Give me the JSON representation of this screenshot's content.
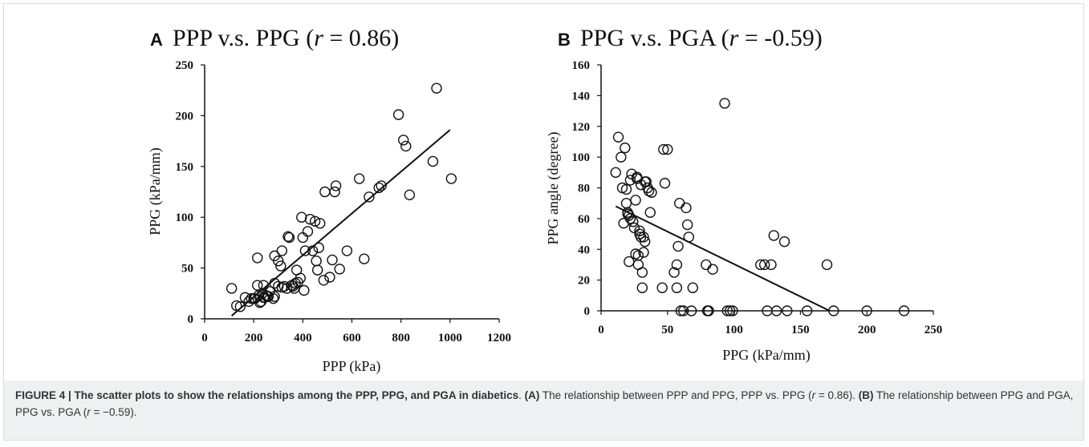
{
  "chart_data": [
    {
      "type": "scatter",
      "panel": "A",
      "title_main": "PPP v.s. PPG (",
      "title_r": "r",
      "title_tail": " = 0.86)",
      "xlabel": "PPP (kPa)",
      "ylabel": "PPG (kPa/mm)",
      "xlim": [
        0,
        1200
      ],
      "ylim": [
        0,
        250
      ],
      "xticks": [
        "0",
        "200",
        "400",
        "600",
        "800",
        "1000",
        "1200"
      ],
      "yticks": [
        "0",
        "50",
        "100",
        "150",
        "200",
        "250"
      ],
      "points": [
        [
          110,
          30
        ],
        [
          130,
          13
        ],
        [
          145,
          12
        ],
        [
          165,
          21
        ],
        [
          180,
          17
        ],
        [
          190,
          20
        ],
        [
          200,
          20
        ],
        [
          205,
          20
        ],
        [
          215,
          33
        ],
        [
          215,
          60
        ],
        [
          220,
          23
        ],
        [
          225,
          16
        ],
        [
          230,
          17
        ],
        [
          235,
          25
        ],
        [
          240,
          21
        ],
        [
          240,
          33
        ],
        [
          245,
          21
        ],
        [
          250,
          23
        ],
        [
          255,
          22
        ],
        [
          260,
          22
        ],
        [
          265,
          27
        ],
        [
          280,
          20
        ],
        [
          285,
          22
        ],
        [
          285,
          35
        ],
        [
          285,
          62
        ],
        [
          300,
          57
        ],
        [
          300,
          32
        ],
        [
          310,
          52
        ],
        [
          315,
          67
        ],
        [
          315,
          31
        ],
        [
          325,
          32
        ],
        [
          335,
          30
        ],
        [
          340,
          81
        ],
        [
          345,
          80
        ],
        [
          355,
          33
        ],
        [
          360,
          32
        ],
        [
          365,
          30
        ],
        [
          370,
          35
        ],
        [
          375,
          48
        ],
        [
          380,
          36
        ],
        [
          390,
          40
        ],
        [
          395,
          100
        ],
        [
          400,
          80
        ],
        [
          405,
          28
        ],
        [
          410,
          67
        ],
        [
          420,
          86
        ],
        [
          430,
          98
        ],
        [
          440,
          67
        ],
        [
          450,
          96
        ],
        [
          455,
          57
        ],
        [
          460,
          48
        ],
        [
          465,
          70
        ],
        [
          470,
          94
        ],
        [
          485,
          38
        ],
        [
          490,
          125
        ],
        [
          510,
          41
        ],
        [
          520,
          58
        ],
        [
          530,
          125
        ],
        [
          535,
          131
        ],
        [
          550,
          49
        ],
        [
          580,
          67
        ],
        [
          630,
          138
        ],
        [
          650,
          59
        ],
        [
          670,
          120
        ],
        [
          710,
          129
        ],
        [
          720,
          131
        ],
        [
          790,
          201
        ],
        [
          810,
          176
        ],
        [
          820,
          170
        ],
        [
          835,
          122
        ],
        [
          930,
          155
        ],
        [
          945,
          227
        ],
        [
          1005,
          138
        ]
      ],
      "fit_line": [
        [
          110,
          3
        ],
        [
          1000,
          186
        ]
      ],
      "grid": false
    },
    {
      "type": "scatter",
      "panel": "B",
      "title_main": "PPG v.s. PGA (",
      "title_r": "r",
      "title_tail": " = -0.59)",
      "xlabel": "PPG (kPa/mm)",
      "ylabel": "PPG angle (degree)",
      "xlim": [
        0,
        250
      ],
      "ylim": [
        0,
        160
      ],
      "xticks": [
        "0",
        "50",
        "100",
        "150",
        "200",
        "250"
      ],
      "yticks": [
        "0",
        "20",
        "40",
        "60",
        "80",
        "100",
        "120",
        "140",
        "160"
      ],
      "points": [
        [
          11,
          90
        ],
        [
          13,
          113
        ],
        [
          15,
          100
        ],
        [
          16,
          80
        ],
        [
          17,
          57
        ],
        [
          18,
          106
        ],
        [
          19,
          79
        ],
        [
          19,
          70
        ],
        [
          20,
          64
        ],
        [
          20,
          63
        ],
        [
          21,
          62
        ],
        [
          21,
          32
        ],
        [
          22,
          85
        ],
        [
          22,
          60
        ],
        [
          23,
          89
        ],
        [
          24,
          58
        ],
        [
          25,
          54
        ],
        [
          26,
          37
        ],
        [
          26,
          72
        ],
        [
          27,
          86
        ],
        [
          27,
          87
        ],
        [
          28,
          36
        ],
        [
          28,
          30
        ],
        [
          29,
          52
        ],
        [
          29,
          50
        ],
        [
          30,
          82
        ],
        [
          30,
          48
        ],
        [
          31,
          25
        ],
        [
          31,
          15
        ],
        [
          32,
          48
        ],
        [
          32,
          38
        ],
        [
          33,
          45
        ],
        [
          33,
          84
        ],
        [
          34,
          84
        ],
        [
          35,
          80
        ],
        [
          36,
          78
        ],
        [
          37,
          64
        ],
        [
          38,
          77
        ],
        [
          46,
          15
        ],
        [
          47,
          105
        ],
        [
          48,
          83
        ],
        [
          50,
          105
        ],
        [
          55,
          25
        ],
        [
          57,
          30
        ],
        [
          57,
          15
        ],
        [
          58,
          42
        ],
        [
          59,
          70
        ],
        [
          60,
          0
        ],
        [
          62,
          0
        ],
        [
          64,
          67
        ],
        [
          65,
          56
        ],
        [
          66,
          48
        ],
        [
          68,
          0
        ],
        [
          69,
          15
        ],
        [
          79,
          30
        ],
        [
          80,
          0
        ],
        [
          81,
          0
        ],
        [
          84,
          27
        ],
        [
          93,
          135
        ],
        [
          95,
          0
        ],
        [
          97,
          0
        ],
        [
          99,
          0
        ],
        [
          120,
          30
        ],
        [
          123,
          30
        ],
        [
          125,
          0
        ],
        [
          128,
          30
        ],
        [
          130,
          49
        ],
        [
          132,
          0
        ],
        [
          138,
          45
        ],
        [
          140,
          0
        ],
        [
          155,
          0
        ],
        [
          170,
          30
        ],
        [
          175,
          0
        ],
        [
          200,
          0
        ],
        [
          228,
          0
        ]
      ],
      "fit_line": [
        [
          11,
          68
        ],
        [
          172,
          0
        ]
      ],
      "grid": false
    }
  ],
  "caption": {
    "figure_label": "FIGURE 4 | The scatter plots to show the relationships among the PPP, PPG, and PGA in diabetics",
    "sentence1_a": ". ",
    "part_a_label": "(A)",
    "part_a_text": " The relationship between PPP and PPG, PPP vs. PPG (",
    "r_symbol": "r",
    "part_a_value": " = 0.86). ",
    "part_b_label": "(B)",
    "part_b_text": " The relationship between PPG and PGA, PPG vs. PGA (",
    "part_b_value": " = −0.59)."
  }
}
